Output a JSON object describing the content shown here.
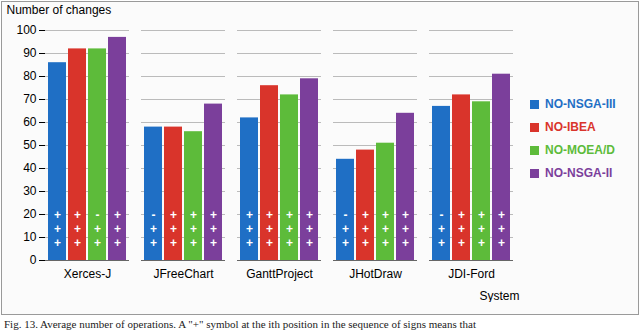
{
  "chart_data": {
    "type": "bar",
    "y_label": "Number of changes",
    "x_label": "System",
    "caption": "Fig. 13. Average number of operations. A \"+\" symbol at the ith position in the sequence of signs means that",
    "categories": [
      "Xerces-J",
      "JFreeChart",
      "GanttProject",
      "JHotDraw",
      "JDI-Ford"
    ],
    "series": [
      {
        "name": "NO-NSGA-III",
        "color": "#1f6fc5",
        "values": [
          86,
          58,
          62,
          44,
          67
        ],
        "signs": [
          [
            "+",
            "+",
            "+"
          ],
          [
            "-",
            "+",
            "+"
          ],
          [
            "+",
            "+",
            "+"
          ],
          [
            "-",
            "+",
            "+"
          ],
          [
            "-",
            "+",
            "+"
          ]
        ]
      },
      {
        "name": "NO-IBEA",
        "color": "#d9342b",
        "values": [
          92,
          58,
          76,
          48,
          72
        ],
        "signs": [
          [
            "+",
            "+",
            "+"
          ],
          [
            "+",
            "+",
            "+"
          ],
          [
            "+",
            "+",
            "+"
          ],
          [
            "+",
            "+",
            "+"
          ],
          [
            "+",
            "+",
            "+"
          ]
        ]
      },
      {
        "name": "NO-MOEA/D",
        "color": "#5dbb3a",
        "values": [
          92,
          56,
          72,
          51,
          69
        ],
        "signs": [
          [
            "-",
            "+",
            "+"
          ],
          [
            "+",
            "+",
            "+"
          ],
          [
            "+",
            "+",
            "+"
          ],
          [
            "+",
            "+",
            "+"
          ],
          [
            "+",
            "+",
            "+"
          ]
        ]
      },
      {
        "name": "NO-NSGA-II",
        "color": "#7b3f9b",
        "values": [
          97,
          68,
          79,
          64,
          81
        ],
        "signs": [
          [
            "+",
            "+",
            "+"
          ],
          [
            "+",
            "+",
            "+"
          ],
          [
            "+",
            "+",
            "+"
          ],
          [
            "+",
            "+",
            "+"
          ],
          [
            "+",
            "+",
            "+"
          ]
        ]
      }
    ],
    "ylim": [
      0,
      100
    ],
    "yticks": [
      0,
      10,
      20,
      30,
      40,
      50,
      60,
      70,
      80,
      90,
      100
    ],
    "grid": true,
    "legend": "right"
  }
}
